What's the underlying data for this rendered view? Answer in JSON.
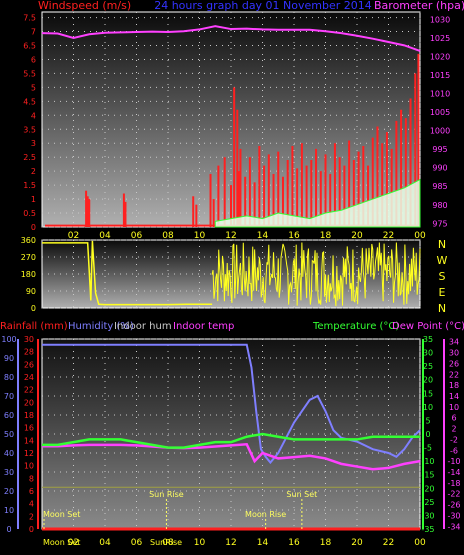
{
  "colors": {
    "wind": "#ff2020",
    "baro": "#ff40ff",
    "dir": "#ffff20",
    "rain": "#ff2020",
    "hum": "#7f7fff",
    "inhum": "#d0d0d0",
    "intemp": "#ff40ff",
    "temp": "#33ff33",
    "dew": "#ff40ff",
    "title": "#3333ff",
    "grid": "#c8c8c8"
  },
  "chart_data": [
    {
      "type": "bar",
      "title": "24 hours graph day  01 November 2014",
      "left_label": "Windspeed (m/s)",
      "right_label": "Barometer (hpa)",
      "x_ticks": [
        "02",
        "04",
        "06",
        "08",
        "10",
        "12",
        "14",
        "16",
        "18",
        "20",
        "22",
        "00"
      ],
      "x_range": [
        0,
        24
      ],
      "left_ticks": [
        "0",
        "0.5",
        "1",
        "1.5",
        "2",
        "2.5",
        "3",
        "3.5",
        "4",
        "4.5",
        "5",
        "5.5",
        "6",
        "6.5",
        "7",
        "7.5"
      ],
      "left_range": [
        0,
        7.7
      ],
      "right_ticks": [
        "975",
        "980",
        "985",
        "990",
        "995",
        "1000",
        "1005",
        "1010",
        "1015",
        "1020",
        "1025",
        "1030"
      ],
      "right_range": [
        974,
        1032
      ],
      "wind_gust": {
        "x": [
          2.8,
          2.9,
          3.0,
          5.2,
          5.3,
          9.6,
          9.8,
          10.7,
          10.9,
          11.2,
          11.6,
          12.0,
          12.2,
          12.4,
          12.5,
          12.6,
          12.9,
          13.2,
          13.5,
          13.8,
          14.1,
          14.4,
          14.7,
          15.0,
          15.3,
          15.6,
          15.9,
          16.2,
          16.5,
          16.8,
          17.1,
          17.4,
          17.7,
          18.0,
          18.3,
          18.6,
          18.9,
          19.2,
          19.5,
          19.8,
          20.1,
          20.4,
          20.7,
          21.0,
          21.3,
          21.6,
          21.9,
          22.2,
          22.5,
          22.8,
          23.1,
          23.4,
          23.7,
          23.9
        ],
        "y": [
          1.3,
          1.1,
          1.0,
          1.2,
          0.9,
          1.1,
          0.8,
          1.9,
          1.0,
          2.2,
          2.5,
          1.5,
          5.0,
          4.2,
          2.0,
          2.8,
          1.8,
          2.5,
          1.6,
          2.9,
          2.2,
          2.6,
          1.9,
          2.7,
          1.8,
          2.4,
          2.9,
          2.1,
          3.0,
          2.2,
          2.4,
          2.8,
          2.0,
          2.6,
          1.9,
          3.0,
          2.5,
          2.2,
          3.1,
          2.4,
          2.7,
          2.9,
          2.2,
          3.2,
          3.6,
          3.0,
          3.4,
          2.8,
          3.8,
          4.2,
          3.9,
          4.6,
          5.5,
          6.2
        ]
      },
      "wind_avg": {
        "x": [
          11,
          12,
          13,
          14,
          15,
          16,
          17,
          18,
          19,
          20,
          21,
          22,
          23,
          24
        ],
        "y": [
          0.2,
          0.3,
          0.4,
          0.3,
          0.5,
          0.4,
          0.3,
          0.5,
          0.6,
          0.8,
          1.0,
          1.2,
          1.4,
          1.7
        ]
      },
      "baro": {
        "x": [
          0,
          1,
          2,
          3,
          4,
          5,
          6,
          7,
          8,
          9,
          10,
          11,
          12,
          13,
          14,
          15,
          16,
          17,
          18,
          19,
          20,
          21,
          22,
          23,
          24
        ],
        "y": [
          1026.3,
          1026.2,
          1025.0,
          1026.0,
          1026.4,
          1026.5,
          1026.6,
          1026.7,
          1026.6,
          1026.8,
          1027.3,
          1028.2,
          1027.4,
          1027.5,
          1027.3,
          1027.2,
          1027.2,
          1027.2,
          1026.8,
          1026.3,
          1025.6,
          1024.8,
          1023.9,
          1023.0,
          1021.5
        ]
      }
    },
    {
      "type": "scatter",
      "right_label": "N W S E N",
      "y_ticks": [
        "0",
        "90",
        "180",
        "270",
        "360"
      ],
      "y_range": [
        0,
        360
      ],
      "series": [
        {
          "x": [
            0,
            2.9,
            3.1,
            3.2,
            3.4,
            3.6,
            4.0,
            6.0,
            8.0,
            9.2,
            10.8
          ],
          "y": [
            345,
            345,
            40,
            355,
            80,
            20,
            18,
            18,
            18,
            20,
            20
          ]
        }
      ]
    },
    {
      "type": "line",
      "labels": {
        "rain": "Rainfall (mm)",
        "hum": "Humidity (%)",
        "inhum": "Indoor hum",
        "intemp": "Indoor temp",
        "temp": "Temperature (°C)",
        "dew": "Dew Point (°C)"
      },
      "x_ticks": [
        "02",
        "04",
        "06",
        "08",
        "10",
        "12",
        "14",
        "16",
        "18",
        "20",
        "22",
        "00"
      ],
      "hum_ticks": [
        "0",
        "10",
        "20",
        "30",
        "40",
        "50",
        "60",
        "70",
        "80",
        "90",
        "100"
      ],
      "rain_ticks": [
        "0",
        "2",
        "4",
        "6",
        "8",
        "10",
        "12",
        "14",
        "16",
        "18",
        "20",
        "22",
        "24",
        "26",
        "28",
        "30"
      ],
      "temp_ticks": [
        "-35",
        "-30",
        "-25",
        "-20",
        "-15",
        "-10",
        "-5",
        "0",
        "5",
        "10",
        "15",
        "20",
        "25",
        "30",
        "35"
      ],
      "dew_ticks": [
        "-34",
        "-30",
        "-26",
        "-22",
        "-18",
        "-14",
        "-10",
        "-6",
        "-2",
        "2",
        "6",
        "10",
        "14",
        "18",
        "22",
        "26",
        "30",
        "34"
      ],
      "humidity": {
        "x": [
          0,
          2,
          4,
          6,
          8,
          10,
          12,
          13,
          13.3,
          13.6,
          13.9,
          14.2,
          14.5,
          15.0,
          15.5,
          16,
          16.5,
          17,
          17.5,
          18,
          18.5,
          19,
          20,
          21,
          22,
          22.5,
          23,
          23.5,
          24
        ],
        "y": [
          97,
          97,
          97,
          97,
          97,
          97,
          97,
          97,
          85,
          62,
          42,
          38,
          35,
          40,
          48,
          56,
          62,
          68,
          70,
          62,
          52,
          48,
          46,
          42,
          40,
          38,
          42,
          48,
          52
        ]
      },
      "temperature": {
        "x": [
          0,
          1,
          2,
          3,
          4,
          5,
          6,
          7,
          8,
          9,
          10,
          11,
          12,
          13,
          14,
          15,
          16,
          17,
          18,
          19,
          20,
          21,
          22,
          23,
          24
        ],
        "y": [
          -4,
          -4,
          -3,
          -2,
          -2,
          -2,
          -3,
          -4,
          -5,
          -5,
          -4,
          -3,
          -3,
          -1,
          0,
          -1,
          -2,
          -2,
          -2,
          -2,
          -2,
          -1,
          -1,
          -1,
          -1
        ]
      },
      "dewpoint": {
        "x": [
          0,
          1,
          2,
          3,
          4,
          5,
          6,
          7,
          8,
          9,
          10,
          11,
          12,
          13,
          13.5,
          14,
          15,
          16,
          17,
          18,
          19,
          20,
          21,
          22,
          23,
          24
        ],
        "y": [
          -4.5,
          -4.5,
          -4.2,
          -4,
          -4,
          -4,
          -4.2,
          -4.6,
          -5.0,
          -5.2,
          -5.0,
          -4.6,
          -4.2,
          -3.8,
          -10,
          -7,
          -9,
          -8.5,
          -8,
          -9,
          -11,
          -12,
          -13,
          -12.5,
          -11,
          -10
        ]
      },
      "indoor_hum": {
        "x": [
          0,
          24
        ],
        "y": [
          22,
          22
        ]
      },
      "rain": {
        "x": [
          0,
          24
        ],
        "y": [
          0,
          0
        ]
      },
      "events": [
        {
          "label": "Moon Set",
          "x": 0,
          "row": 1
        },
        {
          "label": "Sun Rise",
          "x": 7.9,
          "row": 0
        },
        {
          "label": "Sun Set",
          "x": 16.5,
          "row": 0
        },
        {
          "label": "Moon Rise",
          "x": 14.2,
          "row": 1
        }
      ],
      "bottom_labels": {
        "moon_set": "Moon Set",
        "sun_rise": "SunRise"
      }
    }
  ]
}
